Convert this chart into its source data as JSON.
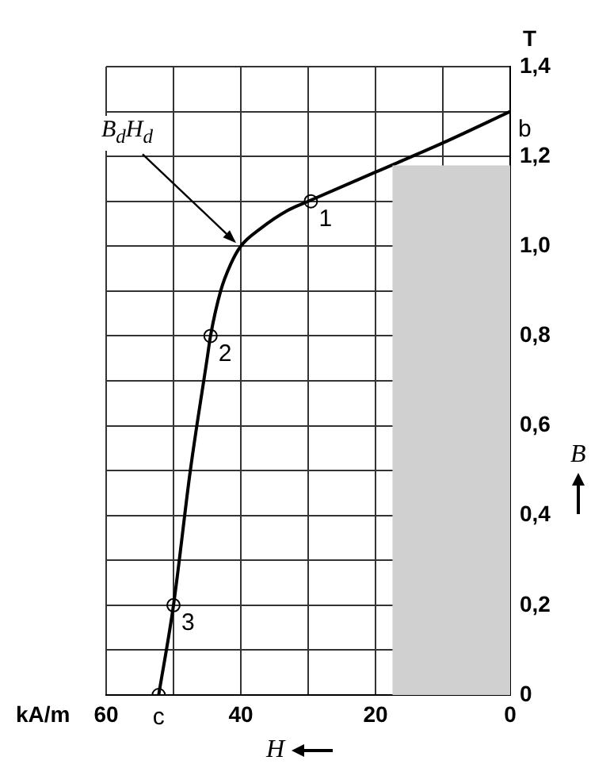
{
  "chart_data": {
    "type": "line",
    "xlabel": "H",
    "ylabel": "B",
    "xlim": [
      60,
      0
    ],
    "xticks": [
      60,
      {
        "value": 50,
        "label": null
      },
      40,
      {
        "value": 30,
        "label": null
      },
      20,
      {
        "value": 10,
        "label": null
      },
      0
    ],
    "ylim": [
      0,
      1.4
    ],
    "yticks": [
      {
        "value": 0,
        "label": "0"
      },
      {
        "value": 0.1,
        "label": null
      },
      {
        "value": 0.2,
        "label": "0,2"
      },
      {
        "value": 0.3,
        "label": null
      },
      {
        "value": 0.4,
        "label": "0,4"
      },
      {
        "value": 0.5,
        "label": null
      },
      {
        "value": 0.6,
        "label": "0,6"
      },
      {
        "value": 0.7,
        "label": null
      },
      {
        "value": 0.8,
        "label": "0,8"
      },
      {
        "value": 0.9,
        "label": null
      },
      {
        "value": 1.0,
        "label": "1,0"
      },
      {
        "value": 1.1,
        "label": null
      },
      {
        "value": 1.2,
        "label": "1,2"
      },
      {
        "value": 1.3,
        "label": null
      },
      {
        "value": 1.4,
        "label": "1,4"
      }
    ],
    "grid": true,
    "legend": false,
    "series": [
      {
        "type": "area",
        "color": "#d0d0d0",
        "x": [
          17.5,
          0
        ],
        "values": [
          1.18,
          1.18
        ]
      },
      {
        "type": "line",
        "color": "#000000",
        "marker": "none",
        "x": [
          52.2,
          50,
          47.5,
          45,
          44.5,
          43,
          41.5,
          40,
          37,
          33,
          30,
          20,
          10,
          0
        ],
        "values": [
          0,
          0.2,
          0.5,
          0.75,
          0.8,
          0.9,
          0.96,
          1.0,
          1.04,
          1.08,
          1.1,
          1.165,
          1.23,
          1.3
        ]
      },
      {
        "type": "scatter",
        "color": "#000000",
        "marker": "circle",
        "x": [
          29.6,
          44.5,
          50,
          52.2
        ],
        "values": [
          1.1,
          0.8,
          0.2,
          0
        ]
      }
    ],
    "annotations": [
      "T",
      "kA/m",
      {
        "text": "1",
        "x": 29.6,
        "y": 1.1
      },
      {
        "text": "2",
        "x": 44.5,
        "y": 0.8
      },
      {
        "text": "3",
        "x": 50,
        "y": 0.2
      },
      {
        "text": "c",
        "x": 52.2,
        "y": 0
      },
      {
        "text": "b",
        "x": 0,
        "y": 1.3
      },
      {
        "text": "B$_{d}$H$_{d}$",
        "x": 40,
        "y": 1.0
      }
    ]
  }
}
